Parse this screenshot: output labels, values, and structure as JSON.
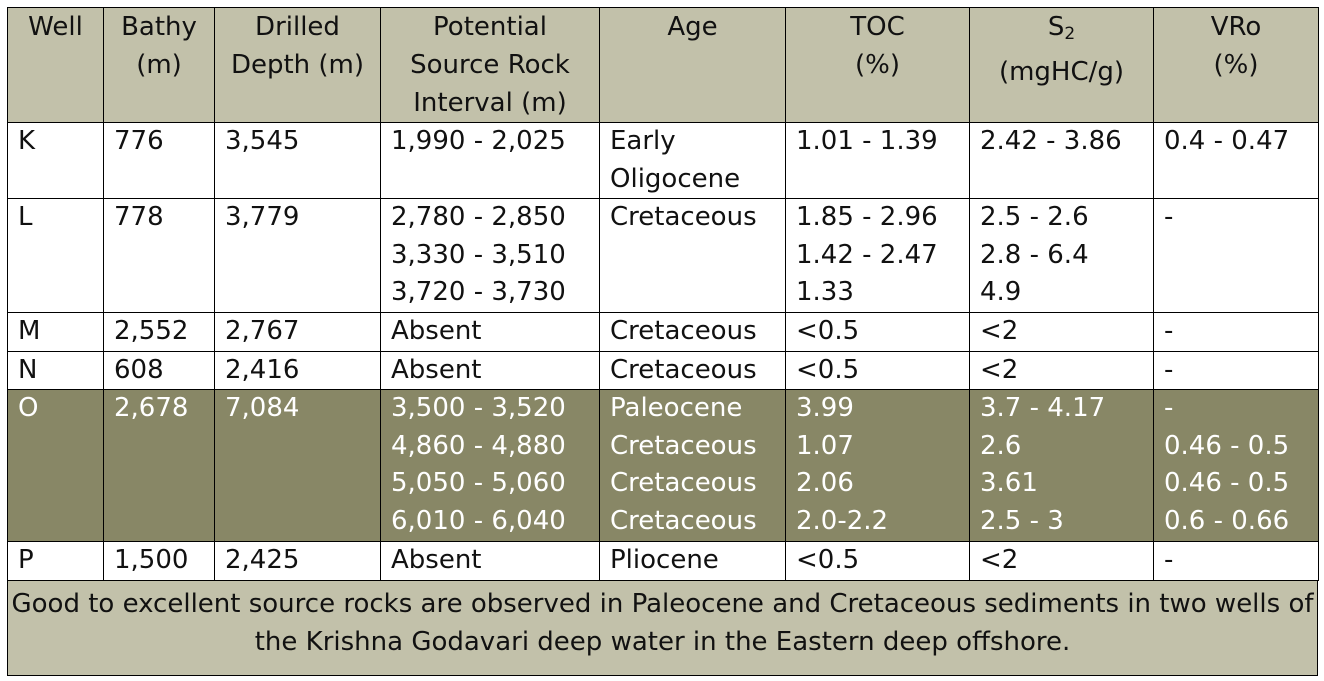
{
  "headers": {
    "well": [
      "Well"
    ],
    "bathy": [
      "Bathy",
      "(m)"
    ],
    "depth": [
      "Drilled",
      "Depth (m)"
    ],
    "interval": [
      "Potential",
      "Source Rock",
      "Interval (m)"
    ],
    "age": [
      "Age"
    ],
    "toc": [
      "TOC",
      "(%)"
    ],
    "s2_main": "S",
    "s2_sub": "2",
    "s2_unit": "(mgHC/g)",
    "vro": [
      "VRo",
      "(%)"
    ]
  },
  "rows": [
    {
      "well": "K",
      "bathy": "776",
      "depth": "3,545",
      "interval": [
        "1,990 - 2,025"
      ],
      "age": [
        "Early",
        "Oligocene"
      ],
      "toc": [
        "1.01 - 1.39"
      ],
      "s2": [
        "2.42 - 3.86"
      ],
      "vro": [
        "0.4 - 0.47"
      ]
    },
    {
      "well": "L",
      "bathy": "778",
      "depth": "3,779",
      "interval": [
        "2,780 - 2,850",
        "3,330 - 3,510",
        "3,720 - 3,730"
      ],
      "age": [
        "Cretaceous"
      ],
      "toc": [
        "1.85 - 2.96",
        "1.42 - 2.47",
        "1.33"
      ],
      "s2": [
        "2.5 - 2.6",
        "2.8 - 6.4",
        "4.9"
      ],
      "vro": [
        "-"
      ]
    },
    {
      "well": "M",
      "bathy": "2,552",
      "depth": "2,767",
      "interval": [
        "Absent"
      ],
      "age": [
        "Cretaceous"
      ],
      "toc": [
        "<0.5"
      ],
      "s2": [
        "<2"
      ],
      "vro": [
        "-"
      ]
    },
    {
      "well": "N",
      "bathy": "608",
      "depth": "2,416",
      "interval": [
        "Absent"
      ],
      "age": [
        "Cretaceous"
      ],
      "toc": [
        "<0.5"
      ],
      "s2": [
        "<2"
      ],
      "vro": [
        "-"
      ]
    },
    {
      "well": "O",
      "bathy": "2,678",
      "depth": "7,084",
      "interval": [
        "3,500 - 3,520",
        "4,860 - 4,880",
        "5,050 - 5,060",
        "6,010 - 6,040"
      ],
      "age": [
        "Paleocene",
        "Cretaceous",
        "Cretaceous",
        "Cretaceous"
      ],
      "toc": [
        "3.99",
        "1.07",
        "2.06",
        "2.0-2.2"
      ],
      "s2": [
        "3.7 - 4.17",
        "2.6",
        "3.61",
        "2.5 - 3"
      ],
      "vro": [
        "-",
        "0.46 - 0.5",
        "0.46 - 0.5",
        "0.6 - 0.66"
      ],
      "highlight": true
    },
    {
      "well": "P",
      "bathy": "1,500",
      "depth": "2,425",
      "interval": [
        "Absent"
      ],
      "age": [
        "Pliocene"
      ],
      "toc": [
        "<0.5"
      ],
      "s2": [
        "<2"
      ],
      "vro": [
        "-"
      ]
    }
  ],
  "footer": [
    "Good to excellent source rocks are observed in Paleocene and Cretaceous sediments in two wells of",
    "the Krishna Godavari deep water in the Eastern deep offshore."
  ],
  "colors": {
    "header_bg": "#c2c1aa",
    "highlight_row_bg": "#888766",
    "highlight_row_text": "#ffffff",
    "footer_bg": "#c2c1aa"
  }
}
